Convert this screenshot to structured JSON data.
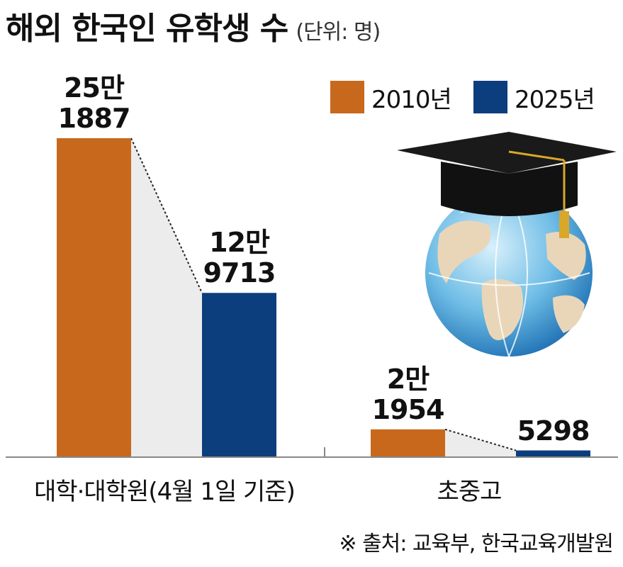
{
  "title": "해외 한국인 유학생 수",
  "unit": "(단위: 명)",
  "source": "※ 출처: 교육부, 한국교육개발원",
  "colors": {
    "y2010": "#c8681c",
    "y2025": "#0c3e7d",
    "connector": "#ececec",
    "axis": "#888888"
  },
  "chart_data": {
    "type": "bar",
    "categories": [
      "대학·대학원(4월 1일 기준)",
      "초중고"
    ],
    "series": [
      {
        "name": "2010년",
        "values": [
          251887,
          21954
        ],
        "labels": [
          "25만\n1887",
          "2만\n1954"
        ]
      },
      {
        "name": "2025년",
        "values": [
          129713,
          5298
        ],
        "labels": [
          "12만\n9713",
          "5298"
        ]
      }
    ],
    "ylim": [
      0,
      275000
    ],
    "legend": "top-right",
    "grid": false
  },
  "decoration": {
    "icon": "graduation-cap-globe-icon"
  }
}
